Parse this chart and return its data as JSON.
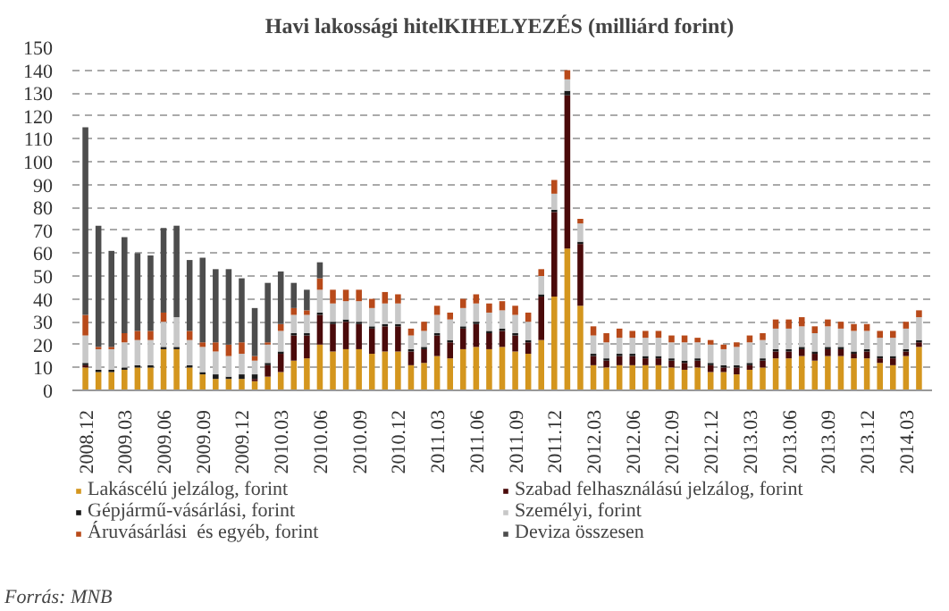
{
  "chart_data": {
    "type": "bar",
    "stacked": true,
    "title": "Havi lakossági hitelKIHELYEZÉS  (milliárd forint)",
    "categories": [
      "2008.12",
      null,
      null,
      "2009.03",
      null,
      null,
      "2009.06",
      null,
      null,
      "2009.09",
      null,
      null,
      "2009.12",
      null,
      null,
      "2010.03",
      null,
      null,
      "2010.06",
      null,
      null,
      "2010.09",
      null,
      null,
      "2010.12",
      null,
      null,
      "2011.03",
      null,
      null,
      "2011.06",
      null,
      null,
      "2011.09",
      null,
      null,
      "2011.12",
      null,
      null,
      "2012.03",
      null,
      null,
      "2012.06",
      null,
      null,
      "2012.09",
      null,
      null,
      "2012.12",
      null,
      null,
      "2013.03",
      null,
      null,
      "2013.06",
      null,
      null,
      "2013.09",
      null,
      null,
      "2013.12",
      null,
      null,
      "2014.03",
      null
    ],
    "series": [
      {
        "name": "Lakáscélú jelzálog, forint",
        "color": "#d4961e",
        "values": [
          10,
          8,
          8,
          9,
          10,
          10,
          18,
          18,
          10,
          7,
          5,
          5,
          5,
          4,
          6,
          8,
          13,
          14,
          20,
          17,
          18,
          18,
          16,
          17,
          17,
          11,
          12,
          15,
          14,
          18,
          19,
          18,
          19,
          17,
          16,
          22,
          41,
          62,
          37,
          11,
          10,
          11,
          11,
          11,
          11,
          10,
          9,
          10,
          8,
          8,
          7,
          9,
          10,
          14,
          14,
          15,
          13,
          15,
          15,
          14,
          14,
          12,
          11,
          15,
          19
        ]
      },
      {
        "name": "Szabad felhasználású jelzálog, forint",
        "color": "#4a0a0a",
        "values": [
          1,
          0,
          0,
          0,
          0,
          0,
          0,
          0,
          0,
          0,
          0,
          0,
          0,
          1,
          5,
          8,
          11,
          10,
          13,
          12,
          12,
          11,
          11,
          11,
          11,
          6,
          6,
          9,
          7,
          9,
          10,
          7,
          7,
          7,
          5,
          19,
          37,
          67,
          27,
          4,
          3,
          4,
          4,
          3,
          3,
          3,
          3,
          3,
          3,
          2,
          3,
          2,
          3,
          3,
          3,
          3,
          3,
          3,
          3,
          2,
          3,
          2,
          3,
          2,
          2
        ]
      },
      {
        "name": "Gépjármű-vásárlási, forint",
        "color": "#1a1a1a",
        "values": [
          1,
          1,
          1,
          1,
          1,
          1,
          1,
          1,
          1,
          1,
          2,
          1,
          2,
          2,
          1,
          1,
          1,
          1,
          1,
          1,
          1,
          1,
          1,
          1,
          1,
          1,
          1,
          1,
          1,
          1,
          1,
          1,
          1,
          1,
          1,
          1,
          1,
          2,
          1,
          1,
          1,
          1,
          1,
          1,
          1,
          1,
          1,
          1,
          1,
          1,
          1,
          1,
          1,
          1,
          1,
          1,
          1,
          1,
          1,
          1,
          1,
          1,
          1,
          1,
          1
        ]
      },
      {
        "name": "Személyi, forint",
        "color": "#c8c8c8",
        "values": [
          12,
          9,
          9,
          11,
          11,
          11,
          11,
          13,
          11,
          11,
          10,
          9,
          9,
          6,
          8,
          9,
          8,
          8,
          10,
          8,
          8,
          9,
          8,
          9,
          9,
          6,
          7,
          8,
          9,
          8,
          8,
          8,
          8,
          8,
          8,
          8,
          7,
          5,
          8,
          8,
          7,
          7,
          7,
          8,
          8,
          7,
          8,
          7,
          8,
          7,
          8,
          9,
          8,
          9,
          9,
          9,
          8,
          9,
          8,
          9,
          8,
          8,
          8,
          9,
          10
        ]
      },
      {
        "name": "Áruvásárlási  és egyéb, forint",
        "color": "#b84a1a",
        "values": [
          9,
          1,
          1,
          4,
          4,
          4,
          4,
          0,
          4,
          2,
          4,
          5,
          5,
          2,
          1,
          3,
          3,
          2,
          5,
          6,
          5,
          5,
          4,
          5,
          4,
          3,
          4,
          4,
          3,
          4,
          4,
          4,
          4,
          4,
          4,
          3,
          6,
          4,
          2,
          4,
          4,
          4,
          3,
          3,
          3,
          3,
          3,
          2,
          2,
          2,
          2,
          3,
          3,
          4,
          4,
          4,
          3,
          3,
          3,
          3,
          3,
          3,
          3,
          3,
          3
        ]
      },
      {
        "name": "Deviza összesen",
        "color": "#4d4d4d",
        "values": [
          82,
          53,
          42,
          42,
          34,
          33,
          37,
          40,
          31,
          37,
          32,
          33,
          28,
          21,
          26,
          23,
          11,
          9,
          7,
          0,
          0,
          0,
          0,
          0,
          0,
          0,
          0,
          0,
          0,
          0,
          0,
          0,
          0,
          0,
          0,
          0,
          0,
          0,
          0,
          0,
          0,
          0,
          0,
          0,
          0,
          0,
          0,
          0,
          0,
          0,
          0,
          0,
          0,
          0,
          0,
          0,
          0,
          0,
          0,
          0,
          0,
          0,
          0,
          0,
          0
        ]
      }
    ],
    "ylim": [
      0,
      150
    ],
    "yticks": [
      0,
      10,
      20,
      30,
      40,
      50,
      60,
      70,
      80,
      90,
      100,
      110,
      120,
      130,
      140,
      150
    ],
    "grid": "y",
    "legend": "bottom",
    "annotations": [
      "Forrás: MNB"
    ]
  }
}
